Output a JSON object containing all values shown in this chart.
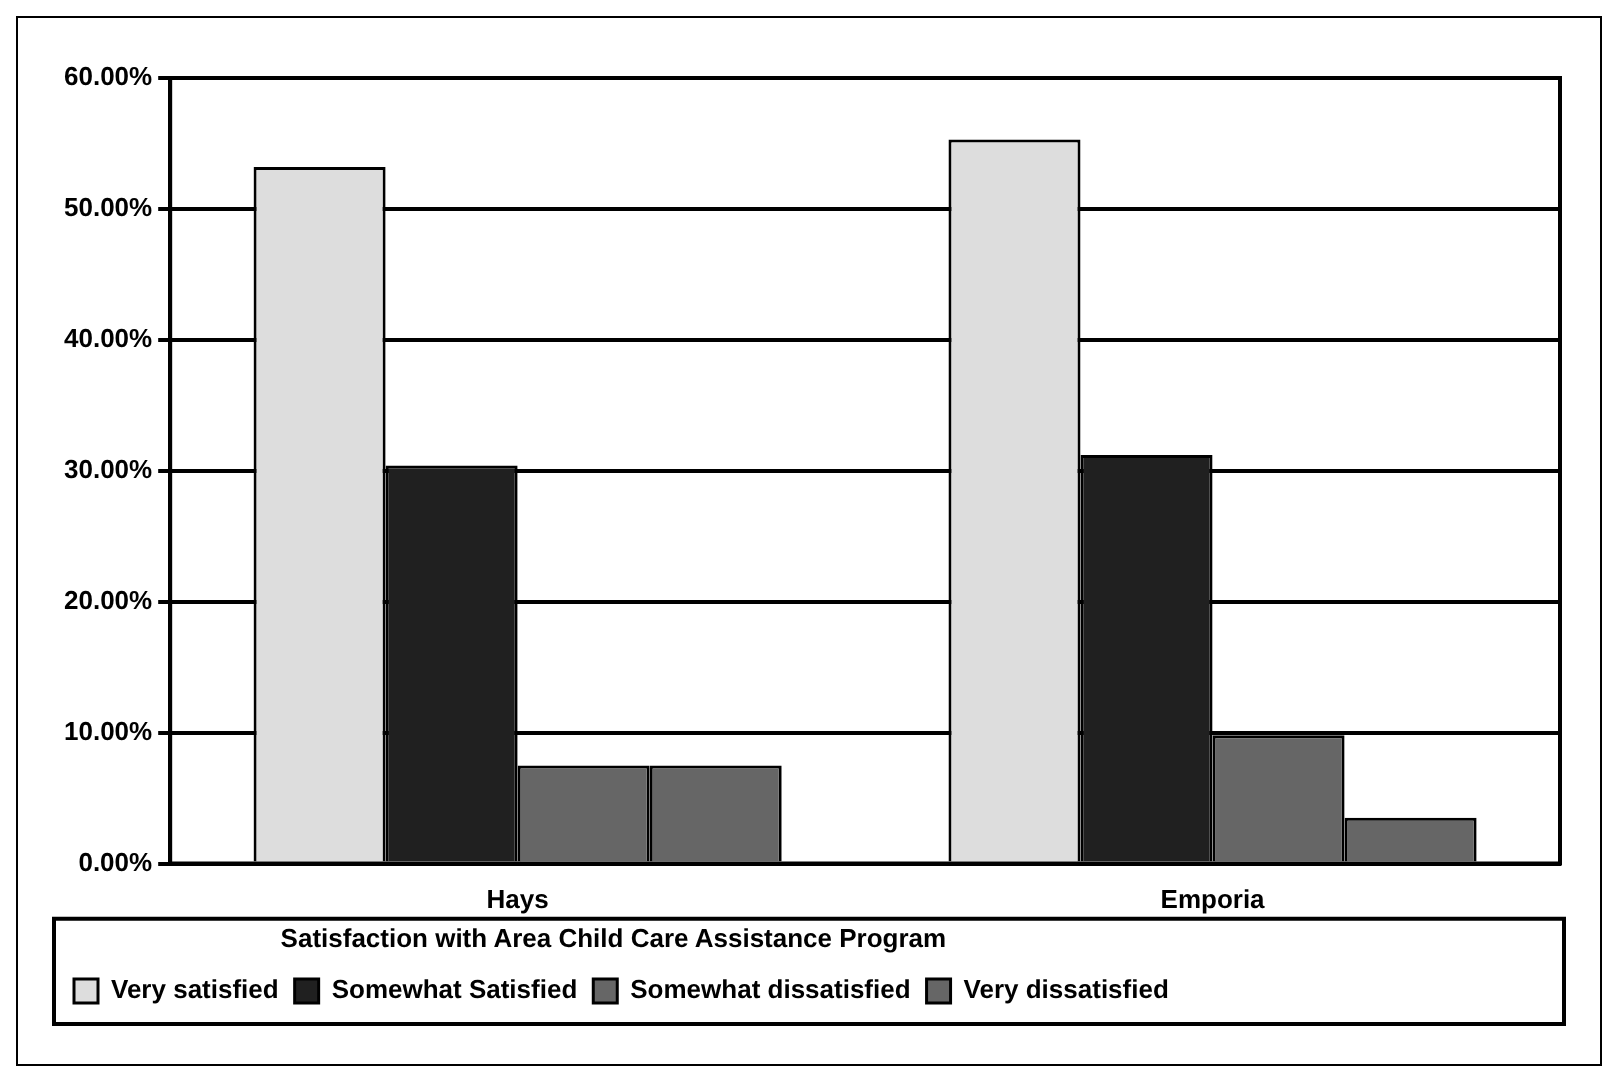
{
  "chart_data": {
    "type": "bar",
    "legend_title": "Satisfaction with Area Child Care Assistance Program",
    "categories": [
      "Hays",
      "Emporia"
    ],
    "series": [
      {
        "name": "Very satisfied",
        "color": "#dddddd",
        "values": [
          53.2,
          55.3
        ]
      },
      {
        "name": "Somewhat Satisfied",
        "color": "#202020",
        "values": [
          30.4,
          31.2
        ]
      },
      {
        "name": "Somewhat dissatisfied",
        "color": "#666666",
        "values": [
          7.5,
          9.8
        ]
      },
      {
        "name": "Very dissatisfied",
        "color": "#666666",
        "values": [
          7.5,
          3.5
        ]
      }
    ],
    "ylim": [
      0,
      60
    ],
    "yticks": [
      {
        "value": 0,
        "label": "0.00%"
      },
      {
        "value": 10,
        "label": "10.00%"
      },
      {
        "value": 20,
        "label": "20.00%"
      },
      {
        "value": 30,
        "label": "30.00%"
      },
      {
        "value": 40,
        "label": "40.00%"
      },
      {
        "value": 50,
        "label": "50.00%"
      },
      {
        "value": 60,
        "label": "60.00%"
      }
    ],
    "grid": "y",
    "legend": "bottom"
  }
}
